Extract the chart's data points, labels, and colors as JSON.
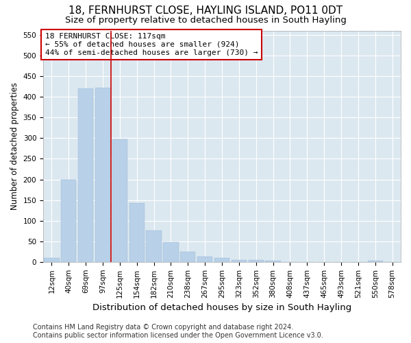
{
  "title": "18, FERNHURST CLOSE, HAYLING ISLAND, PO11 0DT",
  "subtitle": "Size of property relative to detached houses in South Hayling",
  "xlabel": "Distribution of detached houses by size in South Hayling",
  "ylabel": "Number of detached properties",
  "footer_line1": "Contains HM Land Registry data © Crown copyright and database right 2024.",
  "footer_line2": "Contains public sector information licensed under the Open Government Licence v3.0.",
  "categories": [
    "12sqm",
    "40sqm",
    "69sqm",
    "97sqm",
    "125sqm",
    "154sqm",
    "182sqm",
    "210sqm",
    "238sqm",
    "267sqm",
    "295sqm",
    "323sqm",
    "352sqm",
    "380sqm",
    "408sqm",
    "437sqm",
    "465sqm",
    "493sqm",
    "521sqm",
    "550sqm",
    "578sqm"
  ],
  "values": [
    10,
    200,
    420,
    422,
    298,
    143,
    77,
    48,
    25,
    13,
    10,
    5,
    5,
    3,
    0,
    0,
    0,
    0,
    0,
    3,
    0
  ],
  "bar_color": "#b8d0e8",
  "bar_edge_color": "#9ab8d4",
  "vline_color": "#cc0000",
  "vline_x_index": 4,
  "annotation_text": "18 FERNHURST CLOSE: 117sqm\n← 55% of detached houses are smaller (924)\n44% of semi-detached houses are larger (730) →",
  "annotation_box_color": "#ffffff",
  "annotation_box_edge": "#cc0000",
  "ylim": [
    0,
    560
  ],
  "yticks": [
    0,
    50,
    100,
    150,
    200,
    250,
    300,
    350,
    400,
    450,
    500,
    550
  ],
  "background_color": "#dce8f0",
  "grid_color": "#ffffff",
  "title_fontsize": 11,
  "subtitle_fontsize": 9.5,
  "xlabel_fontsize": 9.5,
  "ylabel_fontsize": 8.5,
  "tick_fontsize": 7.5,
  "annot_fontsize": 8,
  "footer_fontsize": 7
}
